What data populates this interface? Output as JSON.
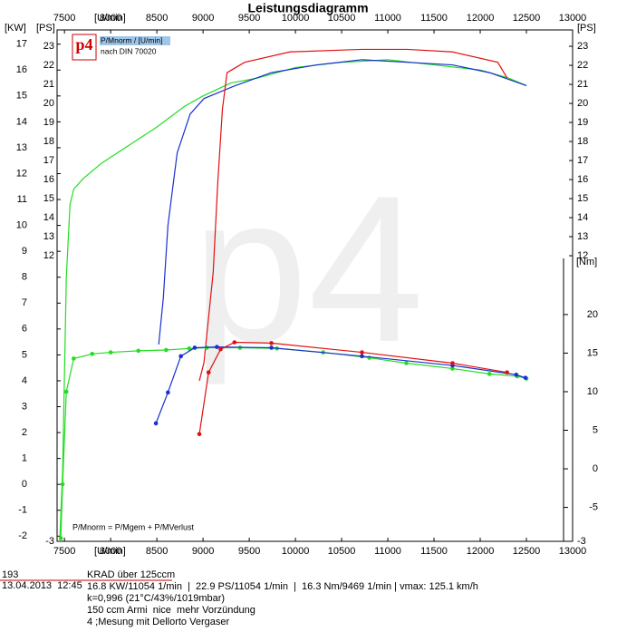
{
  "chart_data": {
    "type": "line",
    "title": "Leistungsdiagramm",
    "x_label": "[U/min]",
    "y_label": "[KW]",
    "y2_label": "[PS]",
    "y3_label": "[Nm]",
    "xlim": [
      7420,
      13000
    ],
    "xticks": [
      7500,
      8000,
      8500,
      9000,
      9500,
      10000,
      10500,
      11000,
      11500,
      12000,
      12500,
      13000
    ],
    "ylim": [
      -2.2,
      17.55
    ],
    "yticks": [
      -2,
      -1,
      0,
      1,
      2,
      3,
      4,
      5,
      6,
      7,
      8,
      9,
      10,
      11,
      12,
      13,
      14,
      15,
      16,
      17
    ],
    "y2lim": [
      -3,
      23.86
    ],
    "y2ticks": [
      -3,
      12,
      13,
      14,
      15,
      16,
      17,
      18,
      19,
      20,
      21,
      22,
      23
    ],
    "y3lim": [
      -9.4,
      56.9
    ],
    "y3ticks": [
      -5,
      0,
      5,
      10,
      15,
      20
    ],
    "legend_logo": "p4",
    "legend_text": "P/Mnorm / [U/min]",
    "legend_subtext": "nach DIN 70020",
    "annotation": "P/Mnorm = P/Mgem + P/MVerlust",
    "watermark": "p4",
    "series": [
      {
        "color": "#22dd22",
        "x": [
          7450,
          7480,
          7520,
          7560,
          7600,
          7700,
          7900,
          8200,
          8500,
          8800,
          9000,
          9300,
          9600,
          10000,
          10500,
          11000,
          11500,
          12000,
          12300,
          12500
        ],
        "values": [
          -2.1,
          0.5,
          8,
          10.8,
          11.4,
          11.8,
          12.4,
          13.1,
          13.8,
          14.6,
          15.0,
          15.5,
          15.7,
          16.1,
          16.3,
          16.4,
          16.2,
          16.0,
          15.7,
          15.4
        ]
      },
      {
        "color": "#1a2fd0",
        "x": [
          8520,
          8570,
          8620,
          8720,
          8860,
          9010,
          9350,
          9740,
          10230,
          10720,
          11210,
          11700,
          12100,
          12500
        ],
        "values": [
          5.4,
          7.2,
          10,
          12.8,
          14.3,
          14.9,
          15.4,
          15.9,
          16.2,
          16.4,
          16.3,
          16.2,
          15.9,
          15.4
        ]
      },
      {
        "color": "#e01010",
        "x": [
          8960,
          9010,
          9110,
          9160,
          9210,
          9260,
          9450,
          9940,
          10720,
          11210,
          11700,
          12190,
          12290
        ],
        "values": [
          4.0,
          4.7,
          8.2,
          11.7,
          14.5,
          15.9,
          16.3,
          16.7,
          16.8,
          16.8,
          16.7,
          16.3,
          15.7
        ]
      },
      {
        "color": "#22dd22",
        "axis": "y3",
        "x": [
          7460,
          7480,
          7520,
          7600,
          7800,
          8000,
          8300,
          8600,
          8850,
          9040,
          9400,
          9800,
          10300,
          10800,
          11200,
          11700,
          12100,
          12400,
          12500
        ],
        "values": [
          -9,
          -2,
          10,
          14.3,
          14.9,
          15.1,
          15.3,
          15.4,
          15.6,
          15.7,
          15.7,
          15.6,
          15.1,
          14.4,
          13.7,
          13.0,
          12.3,
          12.0,
          11.7
        ]
      },
      {
        "color": "#1a2fd0",
        "axis": "y3",
        "x": [
          8490,
          8620,
          8760,
          8910,
          9150,
          9740,
          10720,
          11700,
          12390,
          12490
        ],
        "values": [
          5.9,
          9.9,
          14.6,
          15.7,
          15.8,
          15.7,
          14.6,
          13.4,
          12.2,
          11.8
        ]
      },
      {
        "color": "#e01010",
        "axis": "y3",
        "x": [
          8960,
          9060,
          9190,
          9340,
          9740,
          10720,
          11700,
          12290
        ],
        "values": [
          4.5,
          12.5,
          15.5,
          16.4,
          16.3,
          15.1,
          13.7,
          12.5
        ]
      }
    ]
  },
  "info": {
    "number": "193",
    "date": "13.04.2013  12:45",
    "lines": [
      "KRAD über 125ccm",
      "16.8 KW/11054 1/min  |  22.9 PS/11054 1/min  |  16.3 Nm/9469 1/min | vmax: 125.1 km/h",
      "k=0,996 (21°C/43%/1019mbar)",
      "150 ccm Armi  nice  mehr Vorzündung",
      "4 ;Mesung mit Dellorto Vergaser"
    ]
  }
}
